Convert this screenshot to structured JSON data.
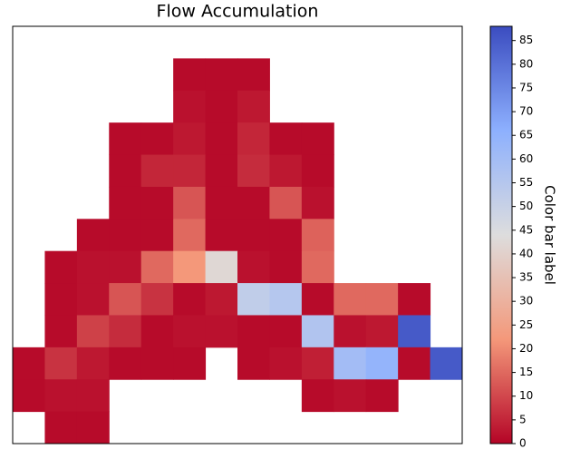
{
  "chart_data": {
    "type": "heatmap",
    "title": "Flow Accumulation",
    "colormap": "coolwarm_r",
    "values": [
      [
        null,
        null,
        null,
        null,
        null,
        null,
        null,
        null,
        null,
        null,
        null,
        null,
        null,
        null
      ],
      [
        null,
        null,
        null,
        null,
        null,
        1,
        1,
        1,
        null,
        null,
        null,
        null,
        null,
        null
      ],
      [
        null,
        null,
        null,
        null,
        null,
        2,
        1,
        3,
        null,
        null,
        null,
        null,
        null,
        null
      ],
      [
        null,
        null,
        null,
        1,
        1,
        3,
        1,
        5,
        1,
        1,
        null,
        null,
        null,
        null
      ],
      [
        null,
        null,
        null,
        1,
        5,
        5,
        1,
        6,
        3,
        1,
        null,
        null,
        null,
        null
      ],
      [
        null,
        null,
        null,
        1,
        1,
        12,
        1,
        1,
        12,
        2,
        null,
        null,
        null,
        null
      ],
      [
        null,
        null,
        1,
        1,
        1,
        15,
        1,
        1,
        1,
        14,
        null,
        null,
        null,
        null
      ],
      [
        null,
        1,
        2,
        2,
        15,
        22,
        42,
        2,
        1,
        15,
        null,
        null,
        null,
        null
      ],
      [
        null,
        1,
        2,
        12,
        7,
        1,
        3,
        52,
        55,
        1,
        15,
        15,
        1,
        null
      ],
      [
        null,
        1,
        9,
        6,
        1,
        2,
        2,
        1,
        1,
        56,
        2,
        3,
        85,
        null
      ],
      [
        1,
        7,
        3,
        1,
        1,
        1,
        null,
        1,
        2,
        4,
        60,
        64,
        1,
        85
      ],
      [
        1,
        2,
        2,
        null,
        null,
        null,
        null,
        null,
        null,
        1,
        2,
        1,
        null,
        null
      ],
      [
        null,
        1,
        1,
        null,
        null,
        null,
        null,
        null,
        null,
        null,
        null,
        null,
        null,
        null
      ]
    ],
    "colorbar": {
      "label": "Color bar label",
      "lim": [
        0,
        88
      ],
      "ticks": [
        0,
        5,
        10,
        15,
        20,
        25,
        30,
        35,
        40,
        45,
        50,
        55,
        60,
        65,
        70,
        75,
        80,
        85
      ]
    }
  }
}
